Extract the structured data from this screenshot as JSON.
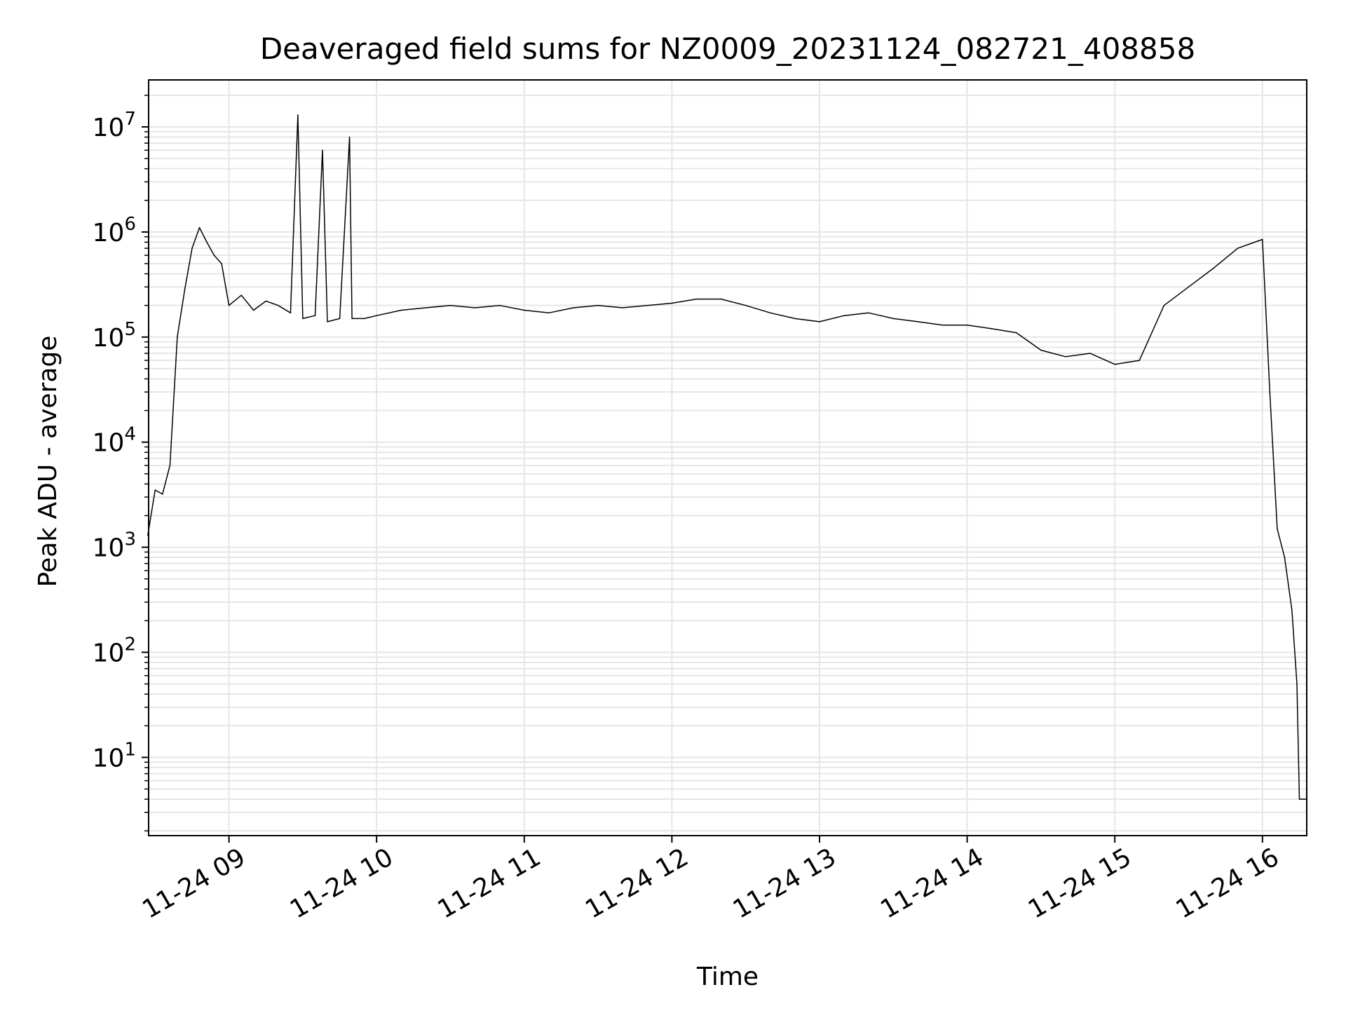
{
  "chart_data": {
    "type": "line",
    "title": "Deaveraged field sums for NZ0009_20231124_082721_408858",
    "xlabel": "Time",
    "ylabel": "Peak ADU - average",
    "yscale": "log",
    "ylim": [
      1.8,
      28000000
    ],
    "xlim": [
      "2023-11-24 08:27:21",
      "2023-11-24 16:18:00"
    ],
    "x_ticks": [
      {
        "value": "2023-11-24 09:00",
        "label": "11-24 09"
      },
      {
        "value": "2023-11-24 10:00",
        "label": "11-24 10"
      },
      {
        "value": "2023-11-24 11:00",
        "label": "11-24 11"
      },
      {
        "value": "2023-11-24 12:00",
        "label": "11-24 12"
      },
      {
        "value": "2023-11-24 13:00",
        "label": "11-24 13"
      },
      {
        "value": "2023-11-24 14:00",
        "label": "11-24 14"
      },
      {
        "value": "2023-11-24 15:00",
        "label": "11-24 15"
      },
      {
        "value": "2023-11-24 16:00",
        "label": "11-24 16"
      }
    ],
    "y_ticks": [
      {
        "value": 10,
        "base": "10",
        "exp": "1"
      },
      {
        "value": 100,
        "base": "10",
        "exp": "2"
      },
      {
        "value": 1000,
        "base": "10",
        "exp": "3"
      },
      {
        "value": 10000,
        "base": "10",
        "exp": "4"
      },
      {
        "value": 100000,
        "base": "10",
        "exp": "5"
      },
      {
        "value": 1000000,
        "base": "10",
        "exp": "6"
      },
      {
        "value": 10000000,
        "base": "10",
        "exp": "7"
      }
    ],
    "grid": true,
    "line_color": "#000000",
    "series": [
      {
        "x": [
          "2023-11-24 08:27",
          "2023-11-24 08:30",
          "2023-11-24 08:33",
          "2023-11-24 08:36",
          "2023-11-24 08:39",
          "2023-11-24 08:42",
          "2023-11-24 08:45",
          "2023-11-24 08:48",
          "2023-11-24 08:51",
          "2023-11-24 08:54",
          "2023-11-24 08:57",
          "2023-11-24 09:00",
          "2023-11-24 09:05",
          "2023-11-24 09:10",
          "2023-11-24 09:15",
          "2023-11-24 09:20",
          "2023-11-24 09:25",
          "2023-11-24 09:28",
          "2023-11-24 09:30",
          "2023-11-24 09:35",
          "2023-11-24 09:38",
          "2023-11-24 09:40",
          "2023-11-24 09:45",
          "2023-11-24 09:49",
          "2023-11-24 09:50",
          "2023-11-24 09:55",
          "2023-11-24 10:00",
          "2023-11-24 10:10",
          "2023-11-24 10:20",
          "2023-11-24 10:30",
          "2023-11-24 10:40",
          "2023-11-24 10:50",
          "2023-11-24 11:00",
          "2023-11-24 11:10",
          "2023-11-24 11:20",
          "2023-11-24 11:30",
          "2023-11-24 11:40",
          "2023-11-24 11:50",
          "2023-11-24 12:00",
          "2023-11-24 12:10",
          "2023-11-24 12:20",
          "2023-11-24 12:30",
          "2023-11-24 12:40",
          "2023-11-24 12:50",
          "2023-11-24 13:00",
          "2023-11-24 13:10",
          "2023-11-24 13:20",
          "2023-11-24 13:30",
          "2023-11-24 13:40",
          "2023-11-24 13:50",
          "2023-11-24 14:00",
          "2023-11-24 14:10",
          "2023-11-24 14:20",
          "2023-11-24 14:30",
          "2023-11-24 14:40",
          "2023-11-24 14:50",
          "2023-11-24 15:00",
          "2023-11-24 15:10",
          "2023-11-24 15:20",
          "2023-11-24 15:30",
          "2023-11-24 15:40",
          "2023-11-24 15:50",
          "2023-11-24 16:00",
          "2023-11-24 16:03",
          "2023-11-24 16:06",
          "2023-11-24 16:09",
          "2023-11-24 16:12",
          "2023-11-24 16:14",
          "2023-11-24 16:15",
          "2023-11-24 16:16",
          "2023-11-24 16:17",
          "2023-11-24 16:18"
        ],
        "y": [
          1300,
          3500,
          3200,
          6000,
          100000,
          280000,
          700000,
          1100000,
          800000,
          600000,
          500000,
          200000,
          250000,
          180000,
          220000,
          200000,
          170000,
          13000000,
          150000,
          160000,
          6000000,
          140000,
          150000,
          8000000,
          150000,
          150000,
          160000,
          180000,
          190000,
          200000,
          190000,
          200000,
          180000,
          170000,
          190000,
          200000,
          190000,
          200000,
          210000,
          230000,
          230000,
          200000,
          170000,
          150000,
          140000,
          160000,
          170000,
          150000,
          140000,
          130000,
          130000,
          120000,
          110000,
          75000,
          65000,
          70000,
          55000,
          60000,
          200000,
          300000,
          450000,
          700000,
          850000,
          30000,
          1500,
          800,
          250,
          50,
          4,
          4,
          4,
          4
        ]
      }
    ]
  }
}
